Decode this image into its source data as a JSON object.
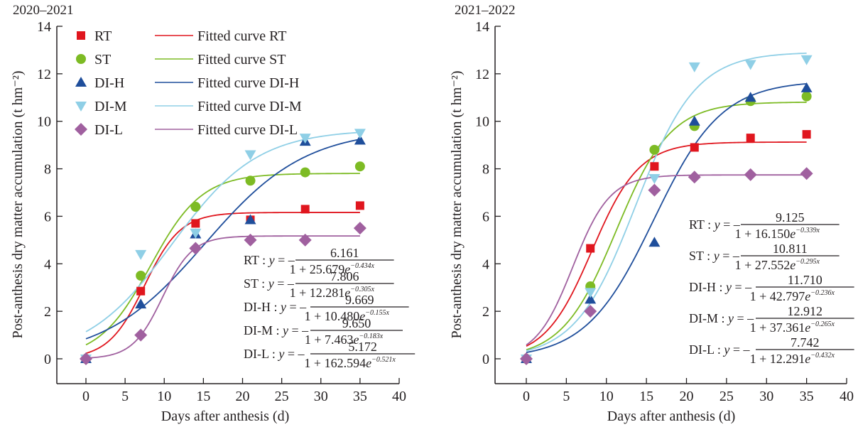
{
  "chart_data": [
    {
      "type": "scatter",
      "title": "2020–2021",
      "xlabel": "Days after anthesis (d)",
      "ylabel": "Post-anthesis dry matter accumulation (t hm⁻²)",
      "xlim": [
        -4,
        40
      ],
      "ylim": [
        -1,
        14
      ],
      "xticks": [
        0,
        5,
        10,
        15,
        20,
        25,
        30,
        35,
        40
      ],
      "yticks": [
        0,
        2,
        4,
        6,
        8,
        10,
        12,
        14
      ],
      "grid": false,
      "legend": "top-left",
      "x": [
        0,
        7,
        14,
        21,
        28,
        35
      ],
      "series": [
        {
          "name": "RT",
          "fit_name": "Fitted curve RT",
          "color": "#e0161e",
          "marker": "square",
          "values": [
            0,
            2.85,
            5.7,
            5.85,
            6.3,
            6.45
          ],
          "fit": {
            "a": 6.161,
            "b": 25.679,
            "k": 0.434
          },
          "equation": {
            "label": "RT",
            "num": "6.161",
            "den": "1 + 25.679e",
            "exp": "−0.434x"
          }
        },
        {
          "name": "ST",
          "fit_name": "Fitted curve ST",
          "color": "#7dbb24",
          "marker": "circle",
          "values": [
            0,
            3.5,
            6.4,
            7.5,
            7.85,
            8.1
          ],
          "fit": {
            "a": 7.806,
            "b": 12.281,
            "k": 0.305
          },
          "equation": {
            "label": "ST",
            "num": "7.806",
            "den": "1 + 12.281e",
            "exp": "−0.305x"
          }
        },
        {
          "name": "DI-H",
          "fit_name": "Fitted curve DI-H",
          "color": "#1f4e9b",
          "marker": "triangle-up",
          "values": [
            0,
            2.3,
            5.25,
            5.85,
            9.15,
            9.2
          ],
          "fit": {
            "a": 9.669,
            "b": 10.48,
            "k": 0.155
          },
          "equation": {
            "label": "DI-H",
            "num": "9.669",
            "den": "1 + 10.480e",
            "exp": "−0.155x"
          }
        },
        {
          "name": "DI-M",
          "fit_name": "Fitted curve DI-M",
          "color": "#8fcfe6",
          "marker": "triangle-down",
          "values": [
            0,
            4.4,
            5.3,
            8.6,
            9.3,
            9.5
          ],
          "fit": {
            "a": 9.65,
            "b": 7.463,
            "k": 0.183
          },
          "equation": {
            "label": "DI-M",
            "num": "9.650",
            "den": "1 + 7.463e",
            "exp": "−0.183x"
          }
        },
        {
          "name": "DI-L",
          "fit_name": "Fitted curve DI-L",
          "color": "#a0609f",
          "marker": "diamond",
          "values": [
            0,
            1.0,
            4.65,
            5.0,
            5.0,
            5.5
          ],
          "fit": {
            "a": 5.172,
            "b": 162.594,
            "k": 0.521
          },
          "equation": {
            "label": "DI-L",
            "num": "5.172",
            "den": "1 + 162.594e",
            "exp": "−0.521x"
          }
        }
      ]
    },
    {
      "type": "scatter",
      "title": "2021–2022",
      "xlabel": "Days after anthesis (d)",
      "ylabel": "Post-anthesis dry matter accumulation (t hm⁻²)",
      "xlim": [
        -4,
        40
      ],
      "ylim": [
        -1,
        14
      ],
      "xticks": [
        0,
        5,
        10,
        15,
        20,
        25,
        30,
        35,
        40
      ],
      "yticks": [
        0,
        2,
        4,
        6,
        8,
        10,
        12,
        14
      ],
      "grid": false,
      "legend": "none",
      "x": [
        0,
        8,
        16,
        21,
        28,
        35
      ],
      "series": [
        {
          "name": "RT",
          "color": "#e0161e",
          "marker": "square",
          "values": [
            0,
            4.65,
            8.1,
            8.9,
            9.3,
            9.45
          ],
          "fit": {
            "a": 9.125,
            "b": 16.15,
            "k": 0.339
          },
          "equation": {
            "label": "RT",
            "num": "9.125",
            "den": "1 + 16.150e",
            "exp": "−0.339x"
          }
        },
        {
          "name": "ST",
          "color": "#7dbb24",
          "marker": "circle",
          "values": [
            0,
            3.05,
            8.8,
            9.8,
            10.85,
            11.05
          ],
          "fit": {
            "a": 10.811,
            "b": 27.552,
            "k": 0.295
          },
          "equation": {
            "label": "ST",
            "num": "10.811",
            "den": "1 + 27.552e",
            "exp": "−0.295x"
          }
        },
        {
          "name": "DI-H",
          "color": "#1f4e9b",
          "marker": "triangle-up",
          "values": [
            0,
            2.5,
            4.9,
            10.0,
            11.0,
            11.4
          ],
          "fit": {
            "a": 11.71,
            "b": 42.797,
            "k": 0.236
          },
          "equation": {
            "label": "DI-H",
            "num": "11.710",
            "den": "1 + 42.797e",
            "exp": "−0.236x"
          }
        },
        {
          "name": "DI-M",
          "color": "#8fcfe6",
          "marker": "triangle-down",
          "values": [
            0,
            2.8,
            7.6,
            12.3,
            12.4,
            12.6
          ],
          "fit": {
            "a": 12.912,
            "b": 37.361,
            "k": 0.265
          },
          "equation": {
            "label": "DI-M",
            "num": "12.912",
            "den": "1 + 37.361e",
            "exp": "−0.265x"
          }
        },
        {
          "name": "DI-L",
          "color": "#a0609f",
          "marker": "diamond",
          "values": [
            0,
            2.0,
            7.1,
            7.65,
            7.75,
            7.8
          ],
          "fit": {
            "a": 7.742,
            "b": 12.291,
            "k": 0.432
          },
          "equation": {
            "label": "DI-L",
            "num": "7.742",
            "den": "1 + 12.291e",
            "exp": "−0.432x"
          }
        }
      ]
    }
  ],
  "equation_prefix": ": y = –"
}
